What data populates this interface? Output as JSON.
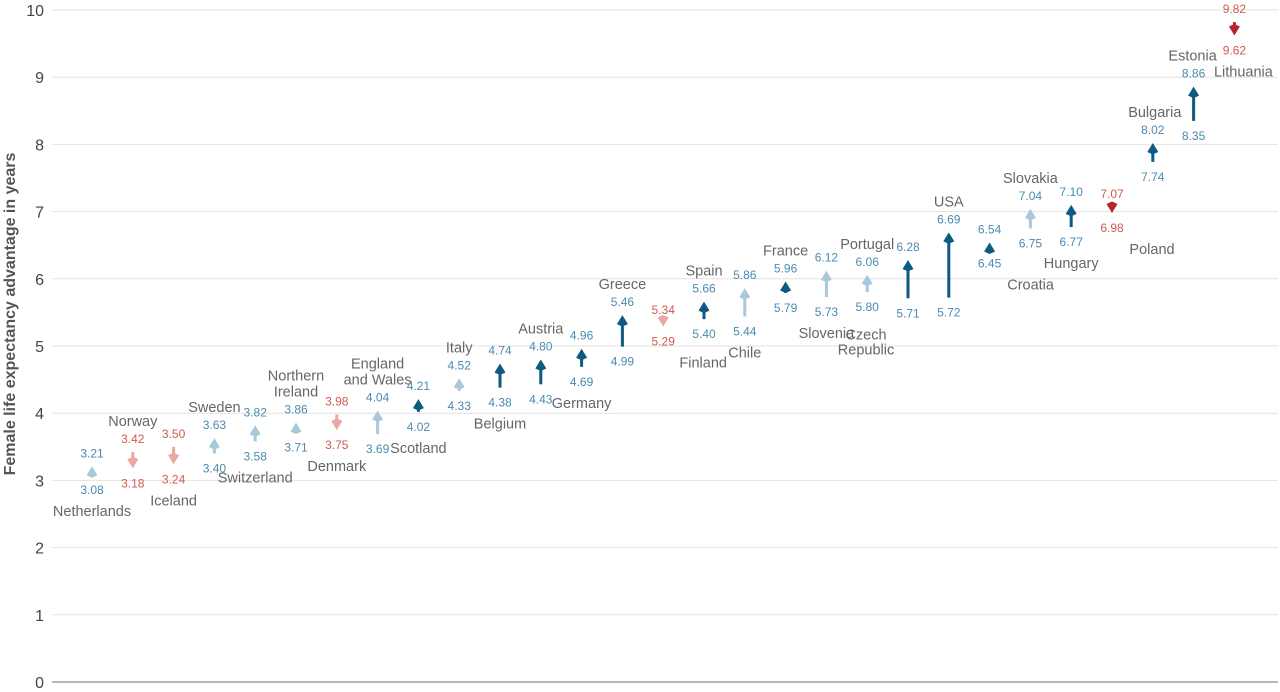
{
  "chart_data": {
    "type": "arrow",
    "ylabel": "Female life expectancy advantage in years",
    "ylim": [
      0,
      10
    ],
    "yticks": [
      "0",
      "1",
      "2",
      "3",
      "4",
      "5",
      "6",
      "7",
      "8",
      "9",
      "10"
    ],
    "grid": true,
    "colors": {
      "increase_large": "#0e5a80",
      "increase_small": "#a9c9da",
      "decrease_large": "#b5272d",
      "decrease_small": "#e8a8a3",
      "increase_label": "#4a8bb0",
      "decrease_label": "#d05a50"
    },
    "points": [
      {
        "country": [
          "Netherlands"
        ],
        "from": 3.08,
        "to": 3.21,
        "from_label": "3.08",
        "to_label": "3.21",
        "style": "increase_small"
      },
      {
        "country": [
          "Norway"
        ],
        "from": 3.42,
        "to": 3.18,
        "from_label": "3.42",
        "to_label": "3.18",
        "style": "decrease_small"
      },
      {
        "country": [
          "Iceland"
        ],
        "from": 3.5,
        "to": 3.24,
        "from_label": "3.50",
        "to_label": "3.24",
        "style": "decrease_small"
      },
      {
        "country": [
          "Sweden"
        ],
        "from": 3.4,
        "to": 3.63,
        "from_label": "3.40",
        "to_label": "3.63",
        "style": "increase_small"
      },
      {
        "country": [
          "Switzerland"
        ],
        "from": 3.58,
        "to": 3.82,
        "from_label": "3.58",
        "to_label": "3.82",
        "style": "increase_small"
      },
      {
        "country": [
          "Northern",
          "Ireland"
        ],
        "from": 3.71,
        "to": 3.86,
        "from_label": "3.71",
        "to_label": "3.86",
        "style": "increase_small"
      },
      {
        "country": [
          "Denmark"
        ],
        "from": 3.98,
        "to": 3.75,
        "from_label": "3.98",
        "to_label": "3.75",
        "style": "decrease_small"
      },
      {
        "country": [
          "England",
          "and Wales"
        ],
        "from": 3.69,
        "to": 4.04,
        "from_label": "3.69",
        "to_label": "4.04",
        "style": "increase_small"
      },
      {
        "country": [
          "Scotland"
        ],
        "from": 4.02,
        "to": 4.21,
        "from_label": "4.02",
        "to_label": "4.21",
        "style": "increase_large"
      },
      {
        "country": [
          "Italy"
        ],
        "from": 4.33,
        "to": 4.52,
        "from_label": "4.33",
        "to_label": "4.52",
        "style": "increase_small"
      },
      {
        "country": [
          "Belgium"
        ],
        "from": 4.38,
        "to": 4.74,
        "from_label": "4.38",
        "to_label": "4.74",
        "style": "increase_large"
      },
      {
        "country": [
          "Austria"
        ],
        "from": 4.43,
        "to": 4.8,
        "from_label": "4.43",
        "to_label": "4.80",
        "style": "increase_large"
      },
      {
        "country": [
          "Germany"
        ],
        "from": 4.69,
        "to": 4.96,
        "from_label": "4.69",
        "to_label": "4.96",
        "style": "increase_large"
      },
      {
        "country": [
          "Greece"
        ],
        "from": 4.99,
        "to": 5.46,
        "from_label": "4.99",
        "to_label": "5.46",
        "style": "increase_large"
      },
      {
        "country": [
          "Finland"
        ],
        "from": 5.34,
        "to": 5.29,
        "from_label": "5.34",
        "to_label": "5.29",
        "style": "decrease_small"
      },
      {
        "country": [
          "Spain"
        ],
        "from": 5.4,
        "to": 5.66,
        "from_label": "5.40",
        "to_label": "5.66",
        "style": "increase_large"
      },
      {
        "country": [
          "Chile"
        ],
        "from": 5.44,
        "to": 5.86,
        "from_label": "5.44",
        "to_label": "5.86",
        "style": "increase_small"
      },
      {
        "country": [
          "France"
        ],
        "from": 5.79,
        "to": 5.96,
        "from_label": "5.79",
        "to_label": "5.96",
        "style": "increase_large"
      },
      {
        "country": [
          "Slovenia"
        ],
        "from": 5.73,
        "to": 6.12,
        "from_label": "5.73",
        "to_label": "6.12",
        "style": "increase_small"
      },
      {
        "country": [
          "Portugal"
        ],
        "from": 5.8,
        "to": 6.06,
        "from_label": "5.80",
        "to_label": "6.06",
        "style": "increase_small"
      },
      {
        "country": [
          "Czech",
          "Republic"
        ],
        "from": 5.71,
        "to": 6.28,
        "from_label": "5.71",
        "to_label": "6.28",
        "style": "increase_large"
      },
      {
        "country": [
          "USA"
        ],
        "from": 5.72,
        "to": 6.69,
        "from_label": "5.72",
        "to_label": "6.69",
        "style": "increase_large"
      },
      {
        "country": [
          "Croatia"
        ],
        "from": 6.45,
        "to": 6.54,
        "from_label": "6.45",
        "to_label": "6.54",
        "style": "increase_large"
      },
      {
        "country": [
          "Slovakia"
        ],
        "from": 6.75,
        "to": 7.04,
        "from_label": "6.75",
        "to_label": "7.04",
        "style": "increase_small"
      },
      {
        "country": [
          "Hungary"
        ],
        "from": 6.77,
        "to": 7.1,
        "from_label": "6.77",
        "to_label": "7.10",
        "style": "increase_large"
      },
      {
        "country": [
          "Poland"
        ],
        "from": 7.07,
        "to": 6.98,
        "from_label": "7.07",
        "to_label": "6.98",
        "style": "decrease_large"
      },
      {
        "country": [
          "Bulgaria"
        ],
        "from": 7.74,
        "to": 8.02,
        "from_label": "7.74",
        "to_label": "8.02",
        "style": "increase_large"
      },
      {
        "country": [
          "Estonia"
        ],
        "from": 8.35,
        "to": 8.86,
        "from_label": "8.35",
        "to_label": "8.86",
        "style": "increase_large"
      },
      {
        "country": [
          "Lithuania"
        ],
        "from": 9.82,
        "to": 9.62,
        "from_label": "9.82",
        "to_label": "9.62",
        "style": "decrease_large"
      }
    ]
  }
}
